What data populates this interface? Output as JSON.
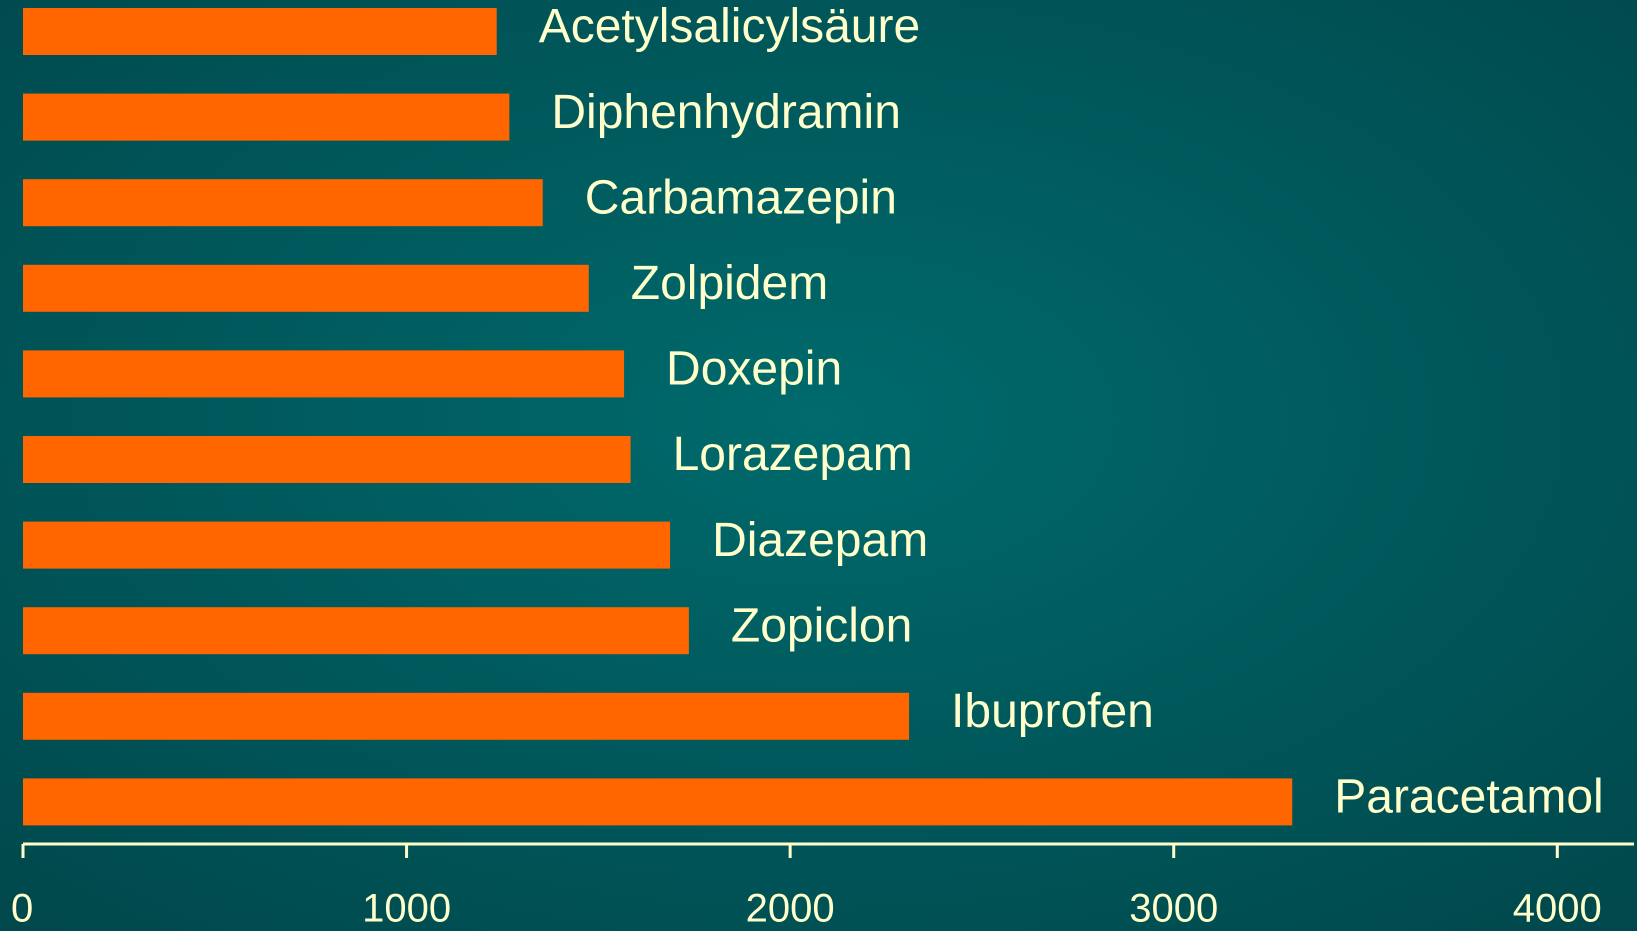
{
  "chart_data": {
    "type": "bar",
    "orientation": "horizontal",
    "categories": [
      "Acetylsalicylsäure",
      "Diphenhydramin",
      "Carbamazepin",
      "Zolpidem",
      "Doxepin",
      "Lorazepam",
      "Diazepam",
      "Zopiclon",
      "Ibuprofen",
      "Paracetamol"
    ],
    "values": [
      1235,
      1268,
      1355,
      1475,
      1567,
      1584,
      1687,
      1736,
      2310,
      3309
    ],
    "color": "#ff6600",
    "xlim": [
      0,
      4200
    ],
    "xticks": [
      0,
      1000,
      2000,
      3000,
      4000
    ],
    "grid": false
  }
}
